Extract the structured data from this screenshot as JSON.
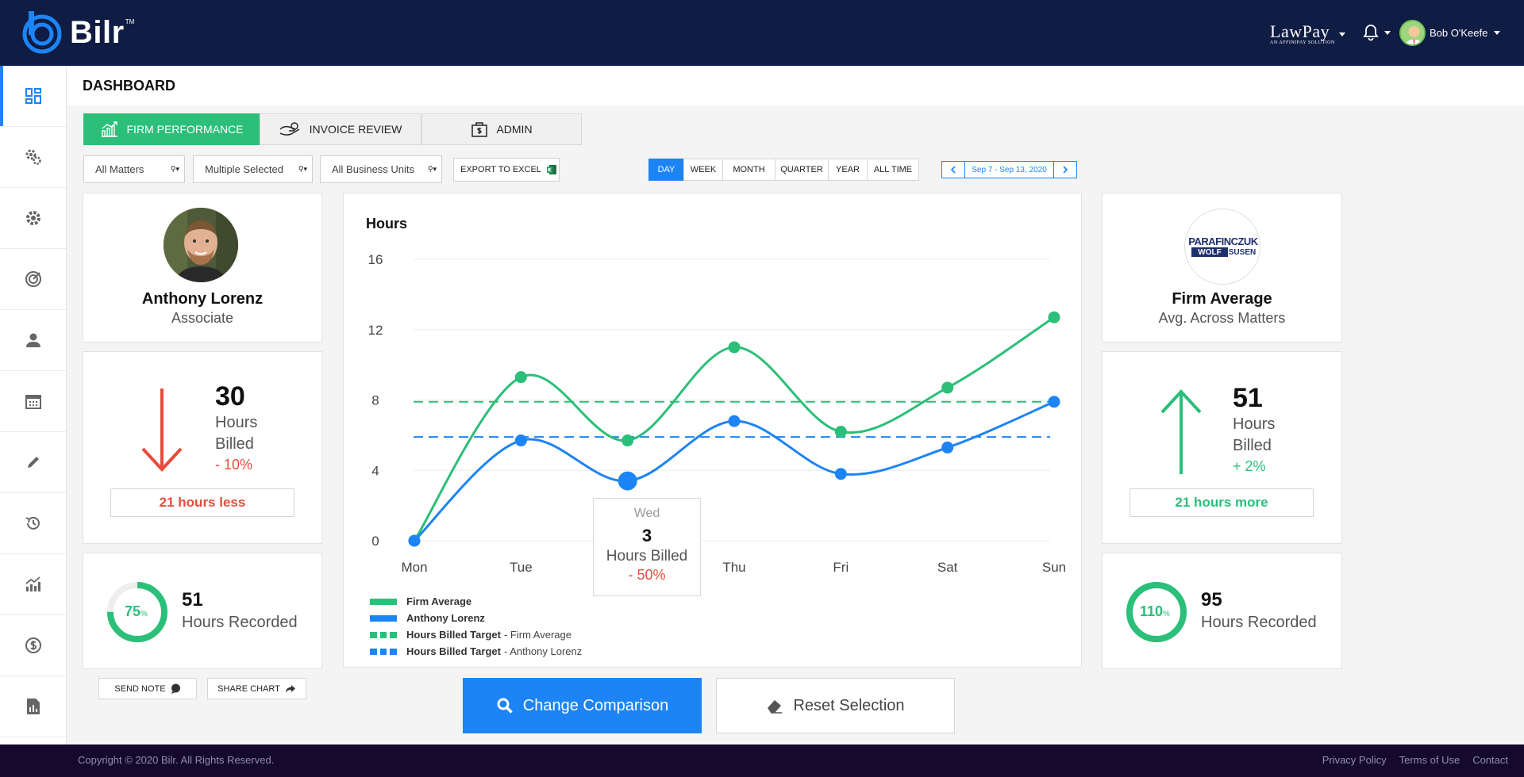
{
  "app": {
    "name": "Bilr",
    "trademark": "TM"
  },
  "header": {
    "partner_brand": "LawPay",
    "partner_tagline": "AN AFFINIPAY SOLUTION",
    "user_name": "Bob O'Keefe"
  },
  "sidebar": {
    "items": [
      {
        "icon": "dashboard-icon",
        "active": true
      },
      {
        "icon": "gears-icon"
      },
      {
        "icon": "settings-icon"
      },
      {
        "icon": "target-icon"
      },
      {
        "icon": "user-icon"
      },
      {
        "icon": "calendar-icon"
      },
      {
        "icon": "pencil-icon"
      },
      {
        "icon": "history-icon"
      },
      {
        "icon": "growth-chart-icon"
      },
      {
        "icon": "dollar-coin-icon"
      },
      {
        "icon": "report-icon"
      }
    ]
  },
  "page": {
    "title": "DASHBOARD"
  },
  "tabs": [
    {
      "label": "FIRM PERFORMANCE",
      "active": true,
      "icon": "chart-growth-icon"
    },
    {
      "label": "INVOICE REVIEW",
      "active": false,
      "icon": "hand-money-icon"
    },
    {
      "label": "ADMIN",
      "active": false,
      "icon": "money-case-icon"
    }
  ],
  "filters": {
    "matters": "All Matters",
    "people": "Multiple Selected",
    "units": "All Business Units",
    "export_label": "EXPORT TO EXCEL"
  },
  "ranges": [
    {
      "label": "DAY",
      "active": true
    },
    {
      "label": "WEEK",
      "active": false
    },
    {
      "label": "MONTH",
      "active": false
    },
    {
      "label": "QUARTER",
      "active": false
    },
    {
      "label": "YEAR",
      "active": false
    },
    {
      "label": "ALL TIME",
      "active": false
    }
  ],
  "date_range": "Sep 7 - Sep 13, 2020",
  "left_person": {
    "name": "Anthony Lorenz",
    "role": "Associate",
    "hours_billed": "30",
    "hours_label_1": "Hours",
    "hours_label_2": "Billed",
    "change": "- 10%",
    "comparison": "21 hours less",
    "recorded_pct": 75,
    "recorded_pct_label": "75",
    "recorded_hours": "51",
    "recorded_label": "Hours Recorded"
  },
  "right_firm": {
    "logo_line1": "PARAFINCZUK",
    "logo_line2a": "WOLF",
    "logo_line2b": "SUSEN",
    "name": "Firm Average",
    "role": "Avg. Across Matters",
    "hours_billed": "51",
    "hours_label_1": "Hours",
    "hours_label_2": "Billed",
    "change": "+ 2%",
    "comparison": "21 hours more",
    "recorded_pct": 110,
    "recorded_pct_label": "110",
    "recorded_hours": "95",
    "recorded_label": "Hours Recorded"
  },
  "actions": {
    "send_note": "SEND NOTE",
    "share_chart": "SHARE CHART",
    "change_comparison": "Change Comparison",
    "reset_selection": "Reset Selection"
  },
  "tooltip": {
    "day": "Wed",
    "value": "3",
    "label": "Hours Billed",
    "change": "- 50%"
  },
  "colors": {
    "green": "#2bbf79",
    "blue": "#1d84f5",
    "red": "#e74c3c",
    "navy": "#0f1c44"
  },
  "chart_data": {
    "type": "line",
    "title": "Hours",
    "categories": [
      "Mon",
      "Tue",
      "Wed",
      "Thu",
      "Fri",
      "Sat",
      "Sun"
    ],
    "ylim": [
      0,
      16
    ],
    "yticks": [
      0,
      4,
      8,
      12,
      16
    ],
    "highlight_index": 2,
    "series": [
      {
        "name": "Firm Average",
        "color": "#2bbf79",
        "values": [
          0,
          9.3,
          5.7,
          11.0,
          6.2,
          8.7,
          12.7
        ]
      },
      {
        "name": "Anthony Lorenz",
        "color": "#1d84f5",
        "values": [
          0,
          5.7,
          3.4,
          6.8,
          3.8,
          5.3,
          7.9
        ]
      }
    ],
    "targets": [
      {
        "name": "Hours Billed Target",
        "suffix": "Firm Average",
        "color": "#2bbf79",
        "value": 7.9
      },
      {
        "name": "Hours Billed Target",
        "suffix": "Anthony Lorenz",
        "color": "#1d84f5",
        "value": 5.9
      }
    ]
  },
  "footer": {
    "copyright": "Copyright © 2020 Bilr. All Rights Reserved.",
    "links": [
      "Privacy Policy",
      "Terms of Use",
      "Contact"
    ]
  }
}
